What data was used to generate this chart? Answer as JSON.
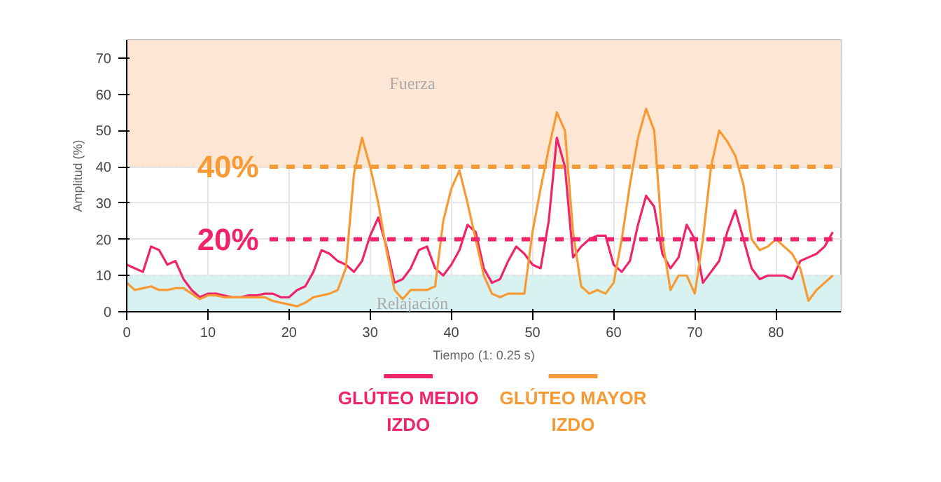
{
  "chart_data": {
    "type": "line",
    "xlabel": "Tiempo (1: 0.25 s)",
    "ylabel": "Amplitud (%)",
    "x": [
      0,
      1,
      2,
      3,
      4,
      5,
      6,
      7,
      8,
      9,
      10,
      11,
      12,
      13,
      14,
      15,
      16,
      17,
      18,
      19,
      20,
      21,
      22,
      23,
      24,
      25,
      26,
      27,
      28,
      29,
      30,
      31,
      32,
      33,
      34,
      35,
      36,
      37,
      38,
      39,
      40,
      41,
      42,
      43,
      44,
      45,
      46,
      47,
      48,
      49,
      50,
      51,
      52,
      53,
      54,
      55,
      56,
      57,
      58,
      59,
      60,
      61,
      62,
      63,
      64,
      65,
      66,
      67,
      68,
      69,
      70,
      71,
      72,
      73,
      74,
      75,
      76,
      77,
      78,
      79,
      80,
      81,
      82,
      83,
      84,
      85,
      86,
      87
    ],
    "series": [
      {
        "name": "GLÚTEO MEDIO\nIZDO",
        "color": "#f0246a",
        "values": [
          13,
          12,
          11,
          18,
          17,
          13,
          14,
          9,
          6,
          4,
          5,
          5,
          4.5,
          4,
          4,
          4.5,
          4.5,
          5,
          5,
          4,
          4,
          6,
          7,
          11,
          17,
          16,
          14,
          13,
          11,
          14,
          21,
          26,
          18,
          8,
          9,
          12,
          17,
          18,
          12,
          10,
          13,
          17,
          24,
          22,
          12,
          8,
          9,
          14,
          18,
          16,
          13,
          12,
          25,
          48,
          40,
          15,
          18,
          20,
          21,
          21,
          13,
          11,
          14,
          24,
          32,
          29,
          16,
          12,
          15,
          24,
          20,
          8,
          11,
          14,
          22,
          28,
          20,
          12,
          9,
          10,
          10,
          10,
          9,
          14,
          15,
          16,
          18,
          22
        ]
      },
      {
        "name": "GLÚTEO MAYOR\nIZDO",
        "color": "#f79a34",
        "values": [
          8,
          6,
          6.5,
          7,
          6,
          6,
          6.5,
          6.5,
          5,
          3.5,
          4.5,
          4.5,
          4,
          4,
          4,
          4,
          4,
          4,
          3,
          2.5,
          2,
          1.5,
          2.5,
          4,
          4.5,
          5,
          6,
          12,
          38,
          48,
          40,
          30,
          17,
          6,
          3.5,
          6,
          6,
          6,
          7,
          25,
          34,
          39,
          30,
          20,
          10,
          5,
          4,
          5,
          5,
          5,
          22,
          34,
          45,
          55,
          50,
          22,
          7,
          5,
          6,
          5,
          8,
          20,
          35,
          48,
          56,
          50,
          20,
          6,
          10,
          10,
          5,
          20,
          40,
          50,
          47,
          43,
          35,
          20,
          17,
          18,
          20,
          18,
          16,
          12,
          3,
          6,
          8,
          10
        ]
      }
    ],
    "xlim": [
      0,
      88
    ],
    "ylim": [
      0,
      75
    ],
    "xticks": [
      0,
      10,
      20,
      30,
      40,
      50,
      60,
      70,
      80
    ],
    "yticks": [
      0,
      10,
      20,
      30,
      40,
      50,
      60,
      70
    ],
    "grid": true,
    "legend": "bottom",
    "bands": [
      {
        "axis": "y",
        "from": 40,
        "to": 75,
        "label": "Fuerza",
        "color": "#fde7d4"
      },
      {
        "axis": "y",
        "from": 0,
        "to": 10,
        "label": "Relajación",
        "color": "#d8f1f1"
      }
    ],
    "ref_lines": [
      {
        "axis": "y",
        "value": 40,
        "label": "40%",
        "color": "#f79a34",
        "line_style": "dashed"
      },
      {
        "axis": "y",
        "value": 20,
        "label": "20%",
        "color": "#f0246a",
        "line_style": "dashed"
      }
    ]
  }
}
